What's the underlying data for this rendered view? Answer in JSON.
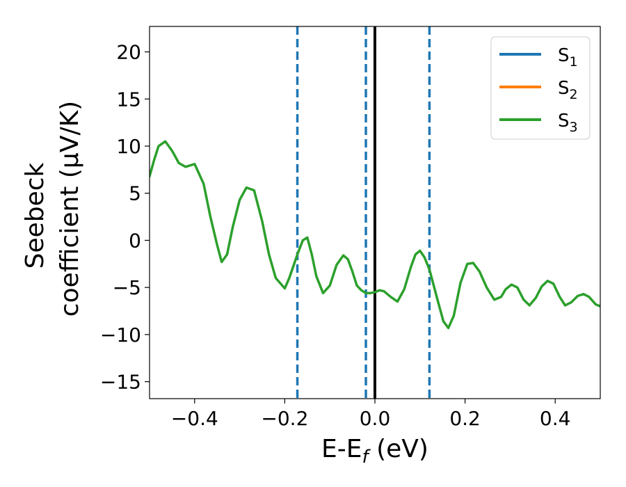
{
  "chart_data": {
    "type": "line",
    "xlabel": "E-E",
    "xlabel_sub": "f",
    "xlabel_unit": " (eV)",
    "ylabel_line1": "Seebeck",
    "ylabel_line2": "coefficient  (μV/K)",
    "xlim": [
      -0.5,
      0.5
    ],
    "ylim": [
      -16.8,
      22.7
    ],
    "xticks": [
      -0.4,
      -0.2,
      0.0,
      0.2,
      0.4
    ],
    "xtick_labels": [
      "−0.4",
      "−0.2",
      "0.0",
      "0.2",
      "0.4"
    ],
    "yticks": [
      20,
      15,
      10,
      5,
      0,
      -5,
      -10,
      -15
    ],
    "ytick_labels": [
      "20",
      "15",
      "10",
      "5",
      "0",
      "−5",
      "−10",
      "−15"
    ],
    "grid": false,
    "legend_position": "top-right",
    "vlines": [
      {
        "x": -0.172,
        "style": "dashed",
        "color": "#1f77b4"
      },
      {
        "x": -0.02,
        "style": "dashed",
        "color": "#1f77b4"
      },
      {
        "x": 0.0,
        "style": "solid",
        "color": "#000000"
      },
      {
        "x": 0.121,
        "style": "dashed",
        "color": "#1f77b4"
      }
    ],
    "series": [
      {
        "name": "S",
        "sub": "1",
        "color": "#1f77b4",
        "x": [],
        "y": []
      },
      {
        "name": "S",
        "sub": "2",
        "color": "#ff7f0e",
        "x": [],
        "y": []
      },
      {
        "name": "S",
        "sub": "3",
        "color": "#2ca02c",
        "x": [
          -0.5,
          -0.49,
          -0.48,
          -0.465,
          -0.45,
          -0.435,
          -0.42,
          -0.4,
          -0.38,
          -0.365,
          -0.35,
          -0.34,
          -0.328,
          -0.315,
          -0.3,
          -0.285,
          -0.268,
          -0.25,
          -0.235,
          -0.22,
          -0.2,
          -0.19,
          -0.172,
          -0.16,
          -0.15,
          -0.14,
          -0.13,
          -0.115,
          -0.1,
          -0.085,
          -0.07,
          -0.06,
          -0.05,
          -0.04,
          -0.03,
          -0.02,
          -0.01,
          0.0,
          0.01,
          0.02,
          0.035,
          0.05,
          0.065,
          0.08,
          0.09,
          0.1,
          0.11,
          0.121,
          0.14,
          0.152,
          0.163,
          0.175,
          0.19,
          0.205,
          0.218,
          0.232,
          0.248,
          0.265,
          0.28,
          0.29,
          0.303,
          0.316,
          0.33,
          0.343,
          0.357,
          0.37,
          0.383,
          0.396,
          0.41,
          0.422,
          0.435,
          0.45,
          0.463,
          0.475,
          0.49,
          0.5
        ],
        "y": [
          6.8,
          8.5,
          10.0,
          10.5,
          9.5,
          8.2,
          7.8,
          8.1,
          6.0,
          2.5,
          -0.5,
          -2.3,
          -1.5,
          1.5,
          4.3,
          5.6,
          5.3,
          2.0,
          -1.5,
          -4.0,
          -5.1,
          -4.0,
          -1.5,
          0.0,
          0.3,
          -1.5,
          -3.8,
          -5.6,
          -4.8,
          -2.6,
          -1.6,
          -2.0,
          -3.3,
          -4.8,
          -5.3,
          -5.6,
          -5.6,
          -5.5,
          -5.3,
          -5.4,
          -6.0,
          -6.5,
          -5.2,
          -2.8,
          -1.5,
          -1.1,
          -1.8,
          -3.1,
          -6.5,
          -8.6,
          -9.3,
          -8.0,
          -4.5,
          -2.5,
          -2.4,
          -3.3,
          -5.0,
          -6.3,
          -6.0,
          -5.2,
          -4.7,
          -5.0,
          -6.3,
          -6.9,
          -6.1,
          -4.9,
          -4.3,
          -4.6,
          -6.0,
          -6.9,
          -6.6,
          -5.9,
          -5.7,
          -6.0,
          -6.8,
          -7.0
        ]
      }
    ]
  }
}
